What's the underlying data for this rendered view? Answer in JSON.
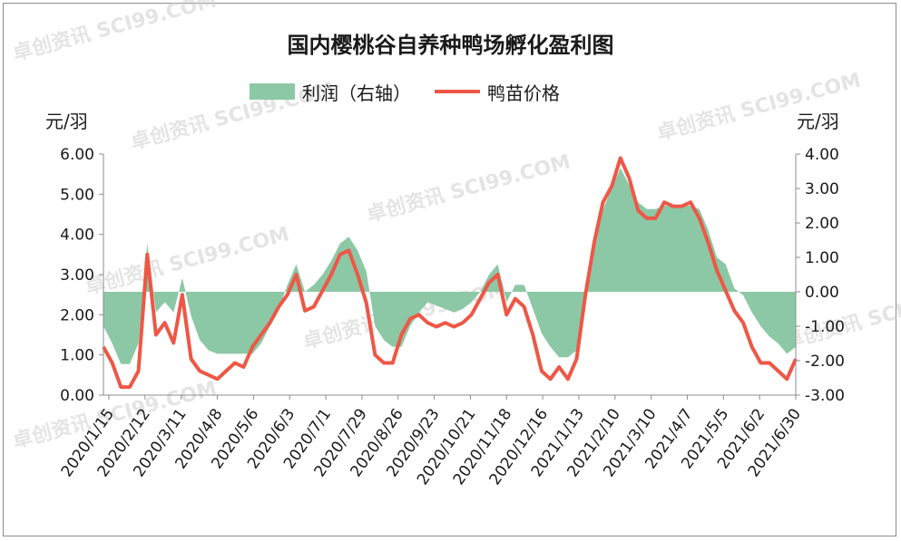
{
  "watermark": "卓创资讯 SCI99.COM",
  "chart_data": {
    "type": "line",
    "title": "国内樱桃谷自养种鸭场孵化盈利图",
    "y1_unit": "元/羽",
    "y2_unit": "元/羽",
    "y1_range": [
      0,
      6
    ],
    "y2_range": [
      -3,
      4
    ],
    "y1_ticks": [
      "0.00",
      "1.00",
      "2.00",
      "3.00",
      "4.00",
      "5.00",
      "6.00"
    ],
    "y2_ticks": [
      "-3.00",
      "-2.00",
      "-1.00",
      "0.00",
      "1.00",
      "2.00",
      "3.00",
      "4.00"
    ],
    "x_ticks": [
      "2020/1/15",
      "2020/2/12",
      "2020/3/11",
      "2020/4/8",
      "2020/5/6",
      "2020/6/3",
      "2020/7/1",
      "2020/7/29",
      "2020/8/26",
      "2020/9/23",
      "2020/10/21",
      "2020/11/18",
      "2020/12/16",
      "2021/1/13",
      "2021/2/10",
      "2021/3/10",
      "2021/4/7",
      "2021/5/5",
      "2021/6/2",
      "2021/6/30"
    ],
    "series": [
      {
        "name": "利润（右轴）",
        "axis": "right",
        "color": "#8cc8a5",
        "values": [
          -1.0,
          -1.5,
          -2.1,
          -2.1,
          -1.5,
          1.4,
          -0.6,
          -0.3,
          -0.6,
          0.4,
          -0.7,
          -1.4,
          -1.7,
          -1.8,
          -1.8,
          -1.8,
          -1.8,
          -1.8,
          -1.5,
          -1.0,
          -0.5,
          0.2,
          0.8,
          0.0,
          0.2,
          0.5,
          0.9,
          1.4,
          1.6,
          1.2,
          0.6,
          -1.0,
          -1.4,
          -1.6,
          -1.6,
          -1.0,
          -0.6,
          -0.3,
          -0.4,
          -0.5,
          -0.6,
          -0.5,
          -0.3,
          0.0,
          0.5,
          0.8,
          -0.3,
          0.2,
          0.2,
          -0.5,
          -1.2,
          -1.6,
          -1.9,
          -1.9,
          -1.7,
          -0.3,
          1.2,
          2.4,
          3.0,
          3.6,
          3.1,
          2.6,
          2.4,
          2.4,
          2.5,
          2.5,
          2.5,
          2.5,
          2.4,
          1.8,
          1.0,
          0.8,
          0.1,
          -0.1,
          -0.6,
          -1.0,
          -1.3,
          -1.5,
          -1.8,
          -1.6
        ]
      },
      {
        "name": "鸭苗价格",
        "axis": "left",
        "color": "#ee5746",
        "values": [
          1.2,
          0.8,
          0.2,
          0.2,
          0.6,
          3.5,
          1.5,
          1.8,
          1.3,
          2.5,
          0.9,
          0.6,
          0.5,
          0.4,
          0.6,
          0.8,
          0.7,
          1.2,
          1.5,
          1.8,
          2.2,
          2.5,
          3.0,
          2.1,
          2.2,
          2.6,
          3.0,
          3.5,
          3.6,
          3.0,
          2.3,
          1.0,
          0.8,
          0.8,
          1.5,
          1.9,
          2.0,
          1.8,
          1.7,
          1.8,
          1.7,
          1.8,
          2.0,
          2.4,
          2.8,
          3.0,
          2.0,
          2.4,
          2.2,
          1.5,
          0.6,
          0.4,
          0.7,
          0.4,
          0.9,
          2.5,
          3.8,
          4.8,
          5.2,
          5.9,
          5.4,
          4.6,
          4.4,
          4.4,
          4.8,
          4.7,
          4.7,
          4.8,
          4.4,
          3.8,
          3.1,
          2.6,
          2.1,
          1.8,
          1.2,
          0.8,
          0.8,
          0.6,
          0.4,
          0.9
        ]
      }
    ],
    "legend_position": "top-center",
    "grid": false
  }
}
